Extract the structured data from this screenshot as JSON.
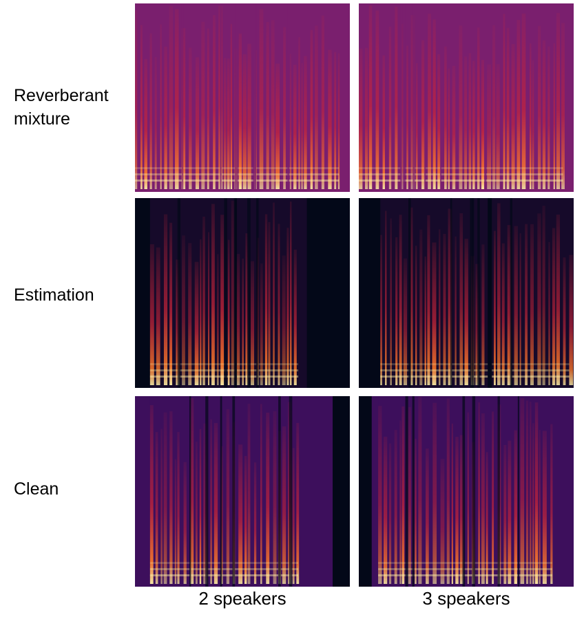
{
  "rows": [
    {
      "label_line1": "Reverberant",
      "label_line2": "mixture"
    },
    {
      "label_line1": "Estimation"
    },
    {
      "label_line1": "Clean"
    }
  ],
  "columns": [
    {
      "label": "2 speakers"
    },
    {
      "label": "3 speakers"
    }
  ],
  "colors": {
    "mixture_bg": "#7a1f6e",
    "estimation_bg": "#160a2a",
    "clean_bg": "#3d0f5c",
    "silence": "#030818",
    "streak": "#c8243a",
    "hot": "#ff7a2a",
    "peak": "#fff2a8"
  }
}
